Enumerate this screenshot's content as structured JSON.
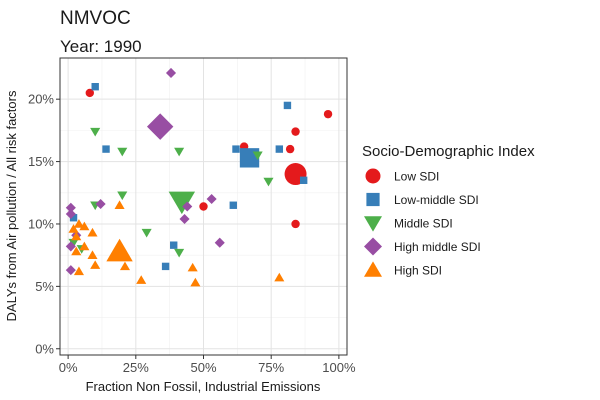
{
  "header": {
    "title": "NMVOC",
    "subtitle": "Year: 1990"
  },
  "legend": {
    "title": "Socio-Demographic Index",
    "position": "right"
  },
  "chart_data": {
    "type": "scatter",
    "title": "NMVOC",
    "subtitle": "Year: 1990",
    "xlabel": "Fraction Non Fossil, Industrial Emissions",
    "ylabel": "DALYs from Air pollution / All risk factors",
    "xlim": [
      -0.03,
      1.03
    ],
    "ylim": [
      -0.005,
      0.233
    ],
    "x_ticks": [
      0,
      0.25,
      0.5,
      0.75,
      1.0
    ],
    "x_tick_labels": [
      "0%",
      "25%",
      "50%",
      "75%",
      "100%"
    ],
    "y_ticks": [
      0,
      0.05,
      0.1,
      0.15,
      0.2
    ],
    "y_tick_labels": [
      "0%",
      "5%",
      "10%",
      "15%",
      "20%"
    ],
    "grid": true,
    "series": [
      {
        "name": "Low SDI",
        "shape": "circle",
        "color": "#E41A1C",
        "points": [
          {
            "x": 0.08,
            "y": 0.205,
            "s": 1
          },
          {
            "x": 0.65,
            "y": 0.162,
            "s": 1
          },
          {
            "x": 0.82,
            "y": 0.16,
            "s": 1
          },
          {
            "x": 0.84,
            "y": 0.174,
            "s": 1
          },
          {
            "x": 0.84,
            "y": 0.14,
            "s": 3
          },
          {
            "x": 0.96,
            "y": 0.188,
            "s": 1
          },
          {
            "x": 0.84,
            "y": 0.1,
            "s": 1
          },
          {
            "x": 0.5,
            "y": 0.114,
            "s": 1
          }
        ]
      },
      {
        "name": "Low-middle SDI",
        "shape": "square",
        "color": "#377EB8",
        "points": [
          {
            "x": 0.1,
            "y": 0.21,
            "s": 1
          },
          {
            "x": 0.14,
            "y": 0.16,
            "s": 1
          },
          {
            "x": 0.62,
            "y": 0.16,
            "s": 1
          },
          {
            "x": 0.67,
            "y": 0.153,
            "s": 3
          },
          {
            "x": 0.78,
            "y": 0.16,
            "s": 1
          },
          {
            "x": 0.81,
            "y": 0.195,
            "s": 1
          },
          {
            "x": 0.87,
            "y": 0.135,
            "s": 1
          },
          {
            "x": 0.61,
            "y": 0.115,
            "s": 1
          },
          {
            "x": 0.39,
            "y": 0.083,
            "s": 1
          },
          {
            "x": 0.36,
            "y": 0.066,
            "s": 1
          },
          {
            "x": 0.02,
            "y": 0.105,
            "s": 1
          }
        ]
      },
      {
        "name": "Middle SDI",
        "shape": "triangle-down",
        "color": "#4DAF4A",
        "points": [
          {
            "x": 0.1,
            "y": 0.174,
            "s": 1
          },
          {
            "x": 0.2,
            "y": 0.158,
            "s": 1
          },
          {
            "x": 0.41,
            "y": 0.158,
            "s": 1
          },
          {
            "x": 0.7,
            "y": 0.155,
            "s": 1
          },
          {
            "x": 0.74,
            "y": 0.134,
            "s": 1
          },
          {
            "x": 0.42,
            "y": 0.118,
            "s": 3
          },
          {
            "x": 0.2,
            "y": 0.123,
            "s": 1
          },
          {
            "x": 0.1,
            "y": 0.115,
            "s": 1
          },
          {
            "x": 0.29,
            "y": 0.093,
            "s": 1
          },
          {
            "x": 0.41,
            "y": 0.077,
            "s": 1
          },
          {
            "x": 0.02,
            "y": 0.085,
            "s": 1
          },
          {
            "x": 0.05,
            "y": 0.08,
            "s": 1
          }
        ]
      },
      {
        "name": "High middle SDI",
        "shape": "diamond",
        "color": "#984EA3",
        "points": [
          {
            "x": 0.38,
            "y": 0.221,
            "s": 1
          },
          {
            "x": 0.34,
            "y": 0.178,
            "s": 3
          },
          {
            "x": 0.44,
            "y": 0.114,
            "s": 1
          },
          {
            "x": 0.53,
            "y": 0.12,
            "s": 1
          },
          {
            "x": 0.43,
            "y": 0.104,
            "s": 1
          },
          {
            "x": 0.56,
            "y": 0.085,
            "s": 1
          },
          {
            "x": 0.12,
            "y": 0.116,
            "s": 1
          },
          {
            "x": 0.01,
            "y": 0.113,
            "s": 1
          },
          {
            "x": 0.01,
            "y": 0.108,
            "s": 1
          },
          {
            "x": 0.01,
            "y": 0.082,
            "s": 1
          },
          {
            "x": 0.03,
            "y": 0.091,
            "s": 1
          },
          {
            "x": 0.01,
            "y": 0.063,
            "s": 1
          }
        ]
      },
      {
        "name": "High SDI",
        "shape": "triangle-up",
        "color": "#FF7F00",
        "points": [
          {
            "x": 0.19,
            "y": 0.078,
            "s": 3
          },
          {
            "x": 0.04,
            "y": 0.1,
            "s": 1
          },
          {
            "x": 0.06,
            "y": 0.098,
            "s": 1
          },
          {
            "x": 0.02,
            "y": 0.096,
            "s": 1
          },
          {
            "x": 0.03,
            "y": 0.09,
            "s": 1
          },
          {
            "x": 0.09,
            "y": 0.093,
            "s": 1
          },
          {
            "x": 0.19,
            "y": 0.115,
            "s": 1
          },
          {
            "x": 0.06,
            "y": 0.082,
            "s": 1
          },
          {
            "x": 0.03,
            "y": 0.078,
            "s": 1
          },
          {
            "x": 0.09,
            "y": 0.075,
            "s": 1
          },
          {
            "x": 0.1,
            "y": 0.067,
            "s": 1
          },
          {
            "x": 0.21,
            "y": 0.066,
            "s": 1
          },
          {
            "x": 0.46,
            "y": 0.065,
            "s": 1
          },
          {
            "x": 0.04,
            "y": 0.062,
            "s": 1
          },
          {
            "x": 0.27,
            "y": 0.055,
            "s": 1
          },
          {
            "x": 0.47,
            "y": 0.053,
            "s": 1
          },
          {
            "x": 0.78,
            "y": 0.057,
            "s": 1
          }
        ]
      }
    ]
  }
}
